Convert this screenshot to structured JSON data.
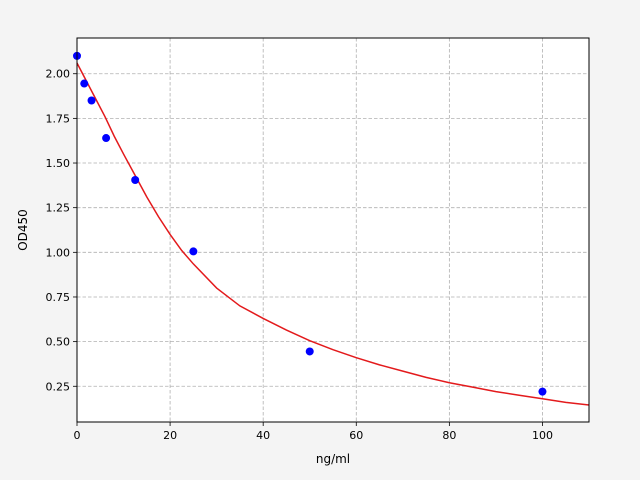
{
  "chart_data": {
    "type": "scatter",
    "title": "",
    "xlabel": "ng/ml",
    "ylabel": "OD450",
    "xlim": [
      0,
      110
    ],
    "ylim": [
      0.05,
      2.2
    ],
    "x_ticks": [
      0,
      20,
      40,
      60,
      80,
      100
    ],
    "x_tick_labels": [
      "0",
      "20",
      "40",
      "60",
      "80",
      "100"
    ],
    "y_ticks": [
      0.25,
      0.5,
      0.75,
      1.0,
      1.25,
      1.5,
      1.75,
      2.0
    ],
    "y_tick_labels": [
      "0.25",
      "0.50",
      "0.75",
      "1.00",
      "1.25",
      "1.50",
      "1.75",
      "2.00"
    ],
    "grid": true,
    "points": {
      "color": "#0000ff",
      "x": [
        0,
        1.56,
        3.125,
        6.25,
        12.5,
        25,
        50,
        100
      ],
      "y": [
        2.1,
        1.945,
        1.85,
        1.64,
        1.405,
        1.005,
        0.445,
        0.22
      ]
    },
    "fit_curve": {
      "color": "#e31a1c",
      "x": [
        0,
        2,
        4,
        6,
        8,
        10,
        12.5,
        15,
        17.5,
        20,
        22.5,
        25,
        30,
        35,
        40,
        45,
        50,
        55,
        60,
        65,
        70,
        75,
        80,
        85,
        90,
        95,
        100,
        105,
        110
      ],
      "y": [
        2.06,
        1.96,
        1.86,
        1.76,
        1.65,
        1.55,
        1.43,
        1.31,
        1.2,
        1.1,
        1.01,
        0.935,
        0.8,
        0.7,
        0.63,
        0.565,
        0.505,
        0.455,
        0.41,
        0.37,
        0.335,
        0.3,
        0.27,
        0.245,
        0.22,
        0.2,
        0.18,
        0.16,
        0.145
      ]
    }
  }
}
